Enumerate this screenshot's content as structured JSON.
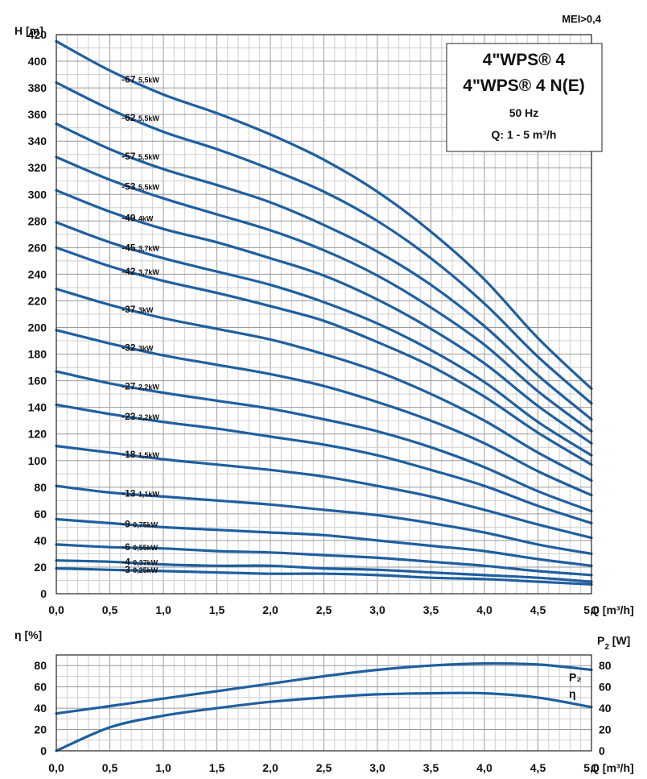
{
  "chart_data": [
    {
      "type": "line",
      "title": "4\"WPS® 4",
      "subtitle": "4\"WPS® 4 N(E)",
      "frequency": "50 Hz",
      "flow_range": "Q: 1 - 5 m³/h",
      "mei": "MEI>0,4",
      "ylabel": "H [m]",
      "xlabel": "Q [m³/h]",
      "xlim": [
        0,
        5
      ],
      "ylim": [
        0,
        420
      ],
      "grid": true,
      "x_ticks": [
        "0,0",
        "0,5",
        "1,0",
        "1,5",
        "2,0",
        "2,5",
        "3,0",
        "3,5",
        "4,0",
        "4,5",
        "5,0"
      ],
      "y_ticks": [
        "0",
        "20",
        "40",
        "60",
        "80",
        "100",
        "120",
        "140",
        "160",
        "180",
        "200",
        "220",
        "240",
        "260",
        "280",
        "300",
        "320",
        "340",
        "360",
        "380",
        "400",
        "420"
      ],
      "x": [
        0,
        0.5,
        1,
        1.5,
        2,
        2.5,
        3,
        3.5,
        4,
        4.5,
        5
      ],
      "series": [
        {
          "name": "-67",
          "power": "5,5kW",
          "values": [
            415,
            393,
            375,
            361,
            345,
            326,
            302,
            272,
            236,
            192,
            154
          ]
        },
        {
          "name": "-62",
          "power": "5,5kW",
          "values": [
            384,
            364,
            347,
            334,
            319,
            302,
            280,
            252,
            218,
            178,
            143
          ]
        },
        {
          "name": "-57",
          "power": "5,5kW",
          "values": [
            353,
            334,
            319,
            307,
            294,
            277,
            257,
            232,
            201,
            164,
            131
          ]
        },
        {
          "name": "-53",
          "power": "5,5kW",
          "values": [
            328,
            311,
            297,
            285,
            273,
            258,
            239,
            215,
            187,
            152,
            122
          ]
        },
        {
          "name": "-49",
          "power": "4kW",
          "values": [
            303,
            287,
            274,
            264,
            252,
            239,
            221,
            199,
            173,
            141,
            113
          ]
        },
        {
          "name": "-45",
          "power": "3,7kW",
          "values": [
            279,
            264,
            252,
            242,
            232,
            219,
            203,
            183,
            159,
            129,
            104
          ]
        },
        {
          "name": "-42",
          "power": "3,7kW",
          "values": [
            260,
            246,
            235,
            226,
            216,
            205,
            189,
            171,
            148,
            121,
            97
          ]
        },
        {
          "name": "-37",
          "power": "3kW",
          "values": [
            229,
            217,
            207,
            199,
            191,
            180,
            167,
            150,
            130,
            106,
            85
          ]
        },
        {
          "name": "-32",
          "power": "3kW",
          "values": [
            198,
            188,
            179,
            172,
            165,
            156,
            144,
            130,
            113,
            92,
            74
          ]
        },
        {
          "name": "-27",
          "power": "2,2kW",
          "values": [
            167,
            158,
            151,
            145,
            139,
            131,
            122,
            110,
            95,
            77,
            62
          ]
        },
        {
          "name": "-23",
          "power": "2,2kW",
          "values": [
            142,
            135,
            129,
            124,
            118,
            112,
            104,
            93,
            81,
            66,
            53
          ]
        },
        {
          "name": "-18",
          "power": "1,5kW",
          "values": [
            111,
            106,
            101,
            97,
            93,
            88,
            81,
            73,
            63,
            52,
            42
          ]
        },
        {
          "name": "-13",
          "power": "1,1kW",
          "values": [
            81,
            76,
            73,
            70,
            67,
            63,
            59,
            53,
            46,
            37,
            30
          ]
        },
        {
          "name": "-9",
          "power": "0,75kW",
          "values": [
            56,
            53,
            50,
            48,
            46,
            44,
            40,
            36,
            32,
            26,
            21
          ]
        },
        {
          "name": "-6",
          "power": "0,55kW",
          "values": [
            37,
            35,
            34,
            32,
            31,
            29,
            27,
            24,
            21,
            17,
            14
          ]
        },
        {
          "name": "-4",
          "power": "0,37kW",
          "values": [
            25,
            24,
            22,
            21,
            21,
            19,
            18,
            16,
            14,
            12,
            9
          ]
        },
        {
          "name": "-3",
          "power": "0,25kW",
          "values": [
            19,
            18,
            17,
            16,
            15,
            15,
            14,
            12,
            11,
            9,
            7
          ]
        }
      ]
    },
    {
      "type": "line",
      "ylabel": "η [%]",
      "y2label": "P2 [W]",
      "xlabel": "Q [m³/h]",
      "xlim": [
        0,
        5
      ],
      "ylim": [
        0,
        90
      ],
      "y2lim": [
        0,
        90
      ],
      "grid": true,
      "x_ticks": [
        "0,0",
        "0,5",
        "1,0",
        "1,5",
        "2,0",
        "2,5",
        "3,0",
        "3,5",
        "4,0",
        "4,5",
        "5,0"
      ],
      "y_ticks": [
        "0",
        "20",
        "40",
        "60",
        "80"
      ],
      "x": [
        0,
        0.5,
        1,
        1.5,
        2,
        2.5,
        3,
        3.5,
        4,
        4.5,
        5
      ],
      "series": [
        {
          "name": "P₂",
          "values": [
            35,
            42,
            49,
            56,
            63,
            70,
            76,
            80,
            82,
            81,
            76
          ]
        },
        {
          "name": "η",
          "values": [
            0,
            22,
            33,
            40,
            46,
            50,
            53,
            54,
            54,
            50,
            41
          ]
        }
      ]
    }
  ]
}
